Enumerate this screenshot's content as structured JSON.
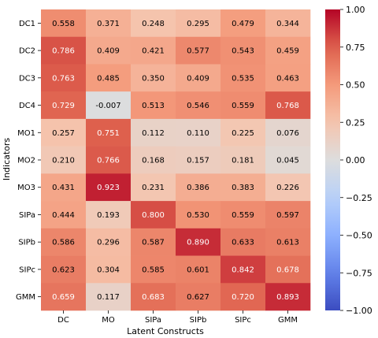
{
  "chart_data": {
    "type": "heatmap",
    "title": "",
    "xlabel": "Latent Constructs",
    "ylabel": "Indicators",
    "columns": [
      "DC",
      "MO",
      "SIPa",
      "SIPb",
      "SIPc",
      "GMM"
    ],
    "rows": [
      "DC1",
      "DC2",
      "DC3",
      "DC4",
      "MO1",
      "MO2",
      "MO3",
      "SIPa",
      "SIPb",
      "SIPc",
      "GMM"
    ],
    "values": [
      [
        0.558,
        0.371,
        0.248,
        0.295,
        0.479,
        0.344
      ],
      [
        0.786,
        0.409,
        0.421,
        0.577,
        0.543,
        0.459
      ],
      [
        0.763,
        0.485,
        0.35,
        0.409,
        0.535,
        0.463
      ],
      [
        0.729,
        -0.007,
        0.513,
        0.546,
        0.559,
        0.768
      ],
      [
        0.257,
        0.751,
        0.112,
        0.11,
        0.225,
        0.076
      ],
      [
        0.21,
        0.766,
        0.168,
        0.157,
        0.181,
        0.045
      ],
      [
        0.431,
        0.923,
        0.231,
        0.386,
        0.383,
        0.226
      ],
      [
        0.444,
        0.193,
        0.8,
        0.53,
        0.559,
        0.597
      ],
      [
        0.586,
        0.296,
        0.587,
        0.89,
        0.633,
        0.613
      ],
      [
        0.623,
        0.304,
        0.585,
        0.601,
        0.842,
        0.678
      ],
      [
        0.659,
        0.117,
        0.683,
        0.627,
        0.72,
        0.893
      ]
    ],
    "value_labels": [
      [
        "0.558",
        "0.371",
        "0.248",
        "0.295",
        "0.479",
        "0.344"
      ],
      [
        "0.786",
        "0.409",
        "0.421",
        "0.577",
        "0.543",
        "0.459"
      ],
      [
        "0.763",
        "0.485",
        "0.350",
        "0.409",
        "0.535",
        "0.463"
      ],
      [
        "0.729",
        "-0.007",
        "0.513",
        "0.546",
        "0.559",
        "0.768"
      ],
      [
        "0.257",
        "0.751",
        "0.112",
        "0.110",
        "0.225",
        "0.076"
      ],
      [
        "0.210",
        "0.766",
        "0.168",
        "0.157",
        "0.181",
        "0.045"
      ],
      [
        "0.431",
        "0.923",
        "0.231",
        "0.386",
        "0.383",
        "0.226"
      ],
      [
        "0.444",
        "0.193",
        "0.800",
        "0.530",
        "0.559",
        "0.597"
      ],
      [
        "0.586",
        "0.296",
        "0.587",
        "0.890",
        "0.633",
        "0.613"
      ],
      [
        "0.623",
        "0.304",
        "0.585",
        "0.601",
        "0.842",
        "0.678"
      ],
      [
        "0.659",
        "0.117",
        "0.683",
        "0.627",
        "0.720",
        "0.893"
      ]
    ],
    "colormap": "coolwarm",
    "vmin": -1.0,
    "vmax": 1.0,
    "colorbar": {
      "ticks": [
        1.0,
        0.75,
        0.5,
        0.25,
        0.0,
        -0.25,
        -0.5,
        -0.75,
        -1.0
      ],
      "tick_labels": [
        "1.00",
        "0.75",
        "0.50",
        "0.25",
        "0.00",
        "−0.25",
        "−0.50",
        "−0.75",
        "−1.00"
      ]
    },
    "grid": false,
    "legend": "colorbar-right"
  }
}
